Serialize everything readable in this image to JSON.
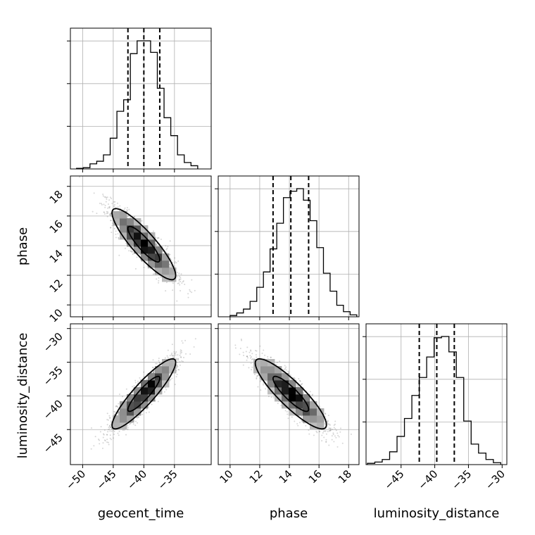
{
  "chart_data": {
    "type": "corner",
    "parameters": [
      {
        "name": "geocent_time",
        "range": [
          -52,
          -29
        ],
        "ticks": [
          -50,
          -45,
          -40,
          -35
        ],
        "tick_labels": [
          "−50",
          "−45",
          "−40",
          "−35"
        ],
        "quantiles": [
          -42.6,
          -40.0,
          -37.4
        ]
      },
      {
        "name": "phase",
        "range": [
          9.2,
          18.7
        ],
        "ticks": [
          10,
          12,
          14,
          16,
          18
        ],
        "tick_labels": [
          "10",
          "12",
          "14",
          "16",
          "18"
        ],
        "quantiles": [
          12.9,
          14.1,
          15.3
        ]
      },
      {
        "name": "luminosity_distance",
        "range": [
          -50.2,
          -29.3
        ],
        "ticks": [
          -45,
          -40,
          -35,
          -30
        ],
        "tick_labels": [
          "−45",
          "−40",
          "−35",
          "−30"
        ],
        "quantiles": [
          -42.3,
          -39.7,
          -37.1
        ]
      }
    ],
    "histograms": [
      {
        "param": "geocent_time",
        "bin_edges": [
          -51.0,
          -49.9,
          -48.8,
          -47.7,
          -46.6,
          -45.5,
          -44.4,
          -43.3,
          -42.2,
          -41.1,
          -40.0,
          -38.9,
          -37.8,
          -36.7,
          -35.6,
          -34.5,
          -33.4,
          -32.3,
          -31.2
        ],
        "counts": [
          0.005,
          0.01,
          0.04,
          0.06,
          0.11,
          0.24,
          0.45,
          0.54,
          0.9,
          1.0,
          1.0,
          0.91,
          0.63,
          0.4,
          0.26,
          0.11,
          0.05,
          0.025
        ]
      },
      {
        "param": "phase",
        "bin_edges": [
          10.0,
          10.45,
          10.9,
          11.35,
          11.8,
          12.25,
          12.7,
          13.15,
          13.6,
          14.05,
          14.5,
          14.95,
          15.4,
          15.85,
          16.3,
          16.75,
          17.2,
          17.65,
          18.1,
          18.55
        ],
        "counts": [
          0.01,
          0.03,
          0.06,
          0.12,
          0.23,
          0.35,
          0.53,
          0.73,
          0.93,
          0.98,
          1.0,
          0.91,
          0.75,
          0.54,
          0.34,
          0.2,
          0.09,
          0.04,
          0.015
        ]
      },
      {
        "param": "luminosity_distance",
        "bin_edges": [
          -50.0,
          -48.9,
          -47.8,
          -46.7,
          -45.6,
          -44.5,
          -43.4,
          -42.3,
          -41.2,
          -40.1,
          -39.0,
          -37.9,
          -36.8,
          -35.7,
          -34.6,
          -33.5,
          -32.4,
          -31.3,
          -30.2
        ],
        "counts": [
          0.01,
          0.02,
          0.04,
          0.1,
          0.22,
          0.36,
          0.54,
          0.68,
          0.84,
          0.99,
          1.0,
          0.88,
          0.68,
          0.34,
          0.16,
          0.09,
          0.04,
          0.015
        ]
      }
    ],
    "pairs": [
      {
        "x": "geocent_time",
        "y": "phase",
        "mean_x": -40.0,
        "mean_y": 14.1,
        "sd_x": 2.6,
        "sd_y": 1.2,
        "correlation": -0.88
      },
      {
        "x": "geocent_time",
        "y": "luminosity_distance",
        "mean_x": -40.0,
        "mean_y": -39.7,
        "sd_x": 2.6,
        "sd_y": 2.6,
        "correlation": 0.9
      },
      {
        "x": "phase",
        "y": "luminosity_distance",
        "mean_x": 14.1,
        "mean_y": -39.7,
        "sd_x": 1.2,
        "sd_y": 2.6,
        "correlation": -0.88
      }
    ],
    "contour_levels_sigma": [
      1,
      2
    ],
    "grid": true,
    "colors": {
      "hist_line": "#000000",
      "density_dark": "#000000",
      "density_light": "#cfcfcf",
      "scatter": "#6f6f6f",
      "grid": "#b0b0b0",
      "axes": "#000000"
    }
  }
}
